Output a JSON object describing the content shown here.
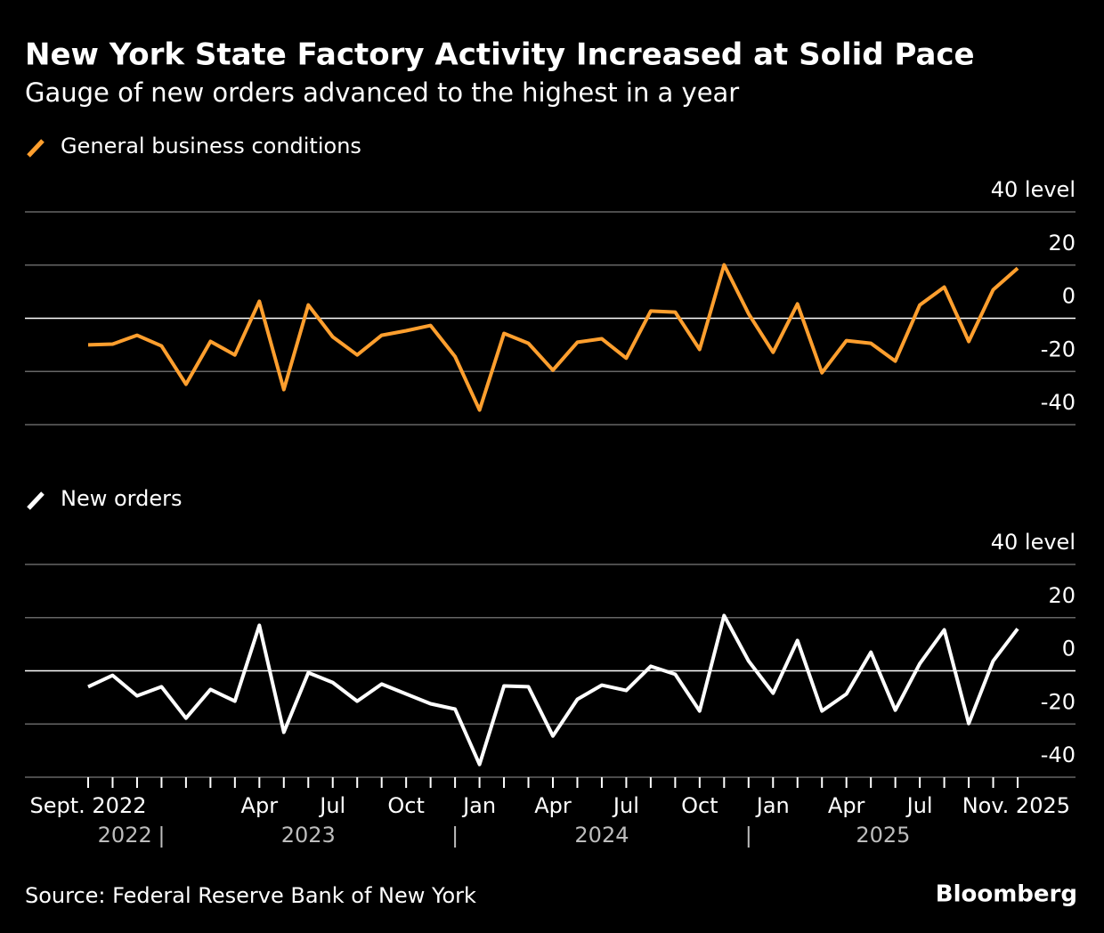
{
  "title": "New York State Factory Activity Increased at Solid Pace",
  "subtitle": "Gauge of new orders advanced to the highest in a year",
  "source": "Source: Federal Reserve Bank of New York",
  "brand": "Bloomberg",
  "chart_data": [
    {
      "type": "line",
      "series": [
        {
          "name": "General business conditions",
          "color": "#ff9f2e",
          "values": [
            -10,
            -9.7,
            -6.4,
            -10.4,
            -24.8,
            -8.7,
            -13.8,
            6.4,
            -26.8,
            5,
            -7,
            -13.8,
            -6.4,
            -4.7,
            -2.7,
            -14.4,
            -34.5,
            -5.7,
            -9.4,
            -19.5,
            -9,
            -7.7,
            -15,
            2.7,
            2.3,
            -11.7,
            20.1,
            1.7,
            -12.8,
            5.4,
            -20.5,
            -8.4,
            -9.4,
            -16.1,
            5,
            11.7,
            -8.7,
            10.7,
            18.8
          ]
        }
      ],
      "ylim": [
        -40,
        40
      ],
      "yticks": [
        -40,
        -20,
        0,
        20,
        {
          "value": 40,
          "label": "40 level"
        }
      ],
      "grid": true
    },
    {
      "type": "line",
      "series": [
        {
          "name": "New orders",
          "color": "#ffffff",
          "values": [
            -6,
            -1.7,
            -9.4,
            -6,
            -17.8,
            -7,
            -11.4,
            17.1,
            -23.1,
            -0.7,
            -4.4,
            -11.4,
            -5,
            -8.7,
            -12.4,
            -14.4,
            -35.2,
            -5.7,
            -6,
            -24.5,
            -10.7,
            -5.4,
            -7.4,
            1.7,
            -1.3,
            -15.1,
            20.8,
            3.7,
            -8.4,
            11.4,
            -15.1,
            -8.7,
            7,
            -14.8,
            2.7,
            15.4,
            -19.8,
            3.7,
            15.8
          ]
        }
      ],
      "categories": [
        "Sept. 2022",
        null,
        null,
        null,
        null,
        null,
        null,
        "Apr",
        null,
        null,
        "Jul",
        null,
        null,
        "Oct",
        null,
        null,
        "Jan",
        null,
        null,
        "Apr",
        null,
        null,
        "Jul",
        null,
        null,
        "Oct",
        null,
        null,
        "Jan",
        null,
        null,
        "Apr",
        null,
        null,
        "Jul",
        null,
        null,
        null,
        "Nov. 2025"
      ],
      "x_groups": [
        "2022",
        "2023",
        "2024",
        "2025"
      ],
      "ylim": [
        -40,
        40
      ],
      "yticks": [
        -40,
        -20,
        0,
        20,
        {
          "value": 40,
          "label": "40 level"
        }
      ],
      "grid": true
    }
  ]
}
